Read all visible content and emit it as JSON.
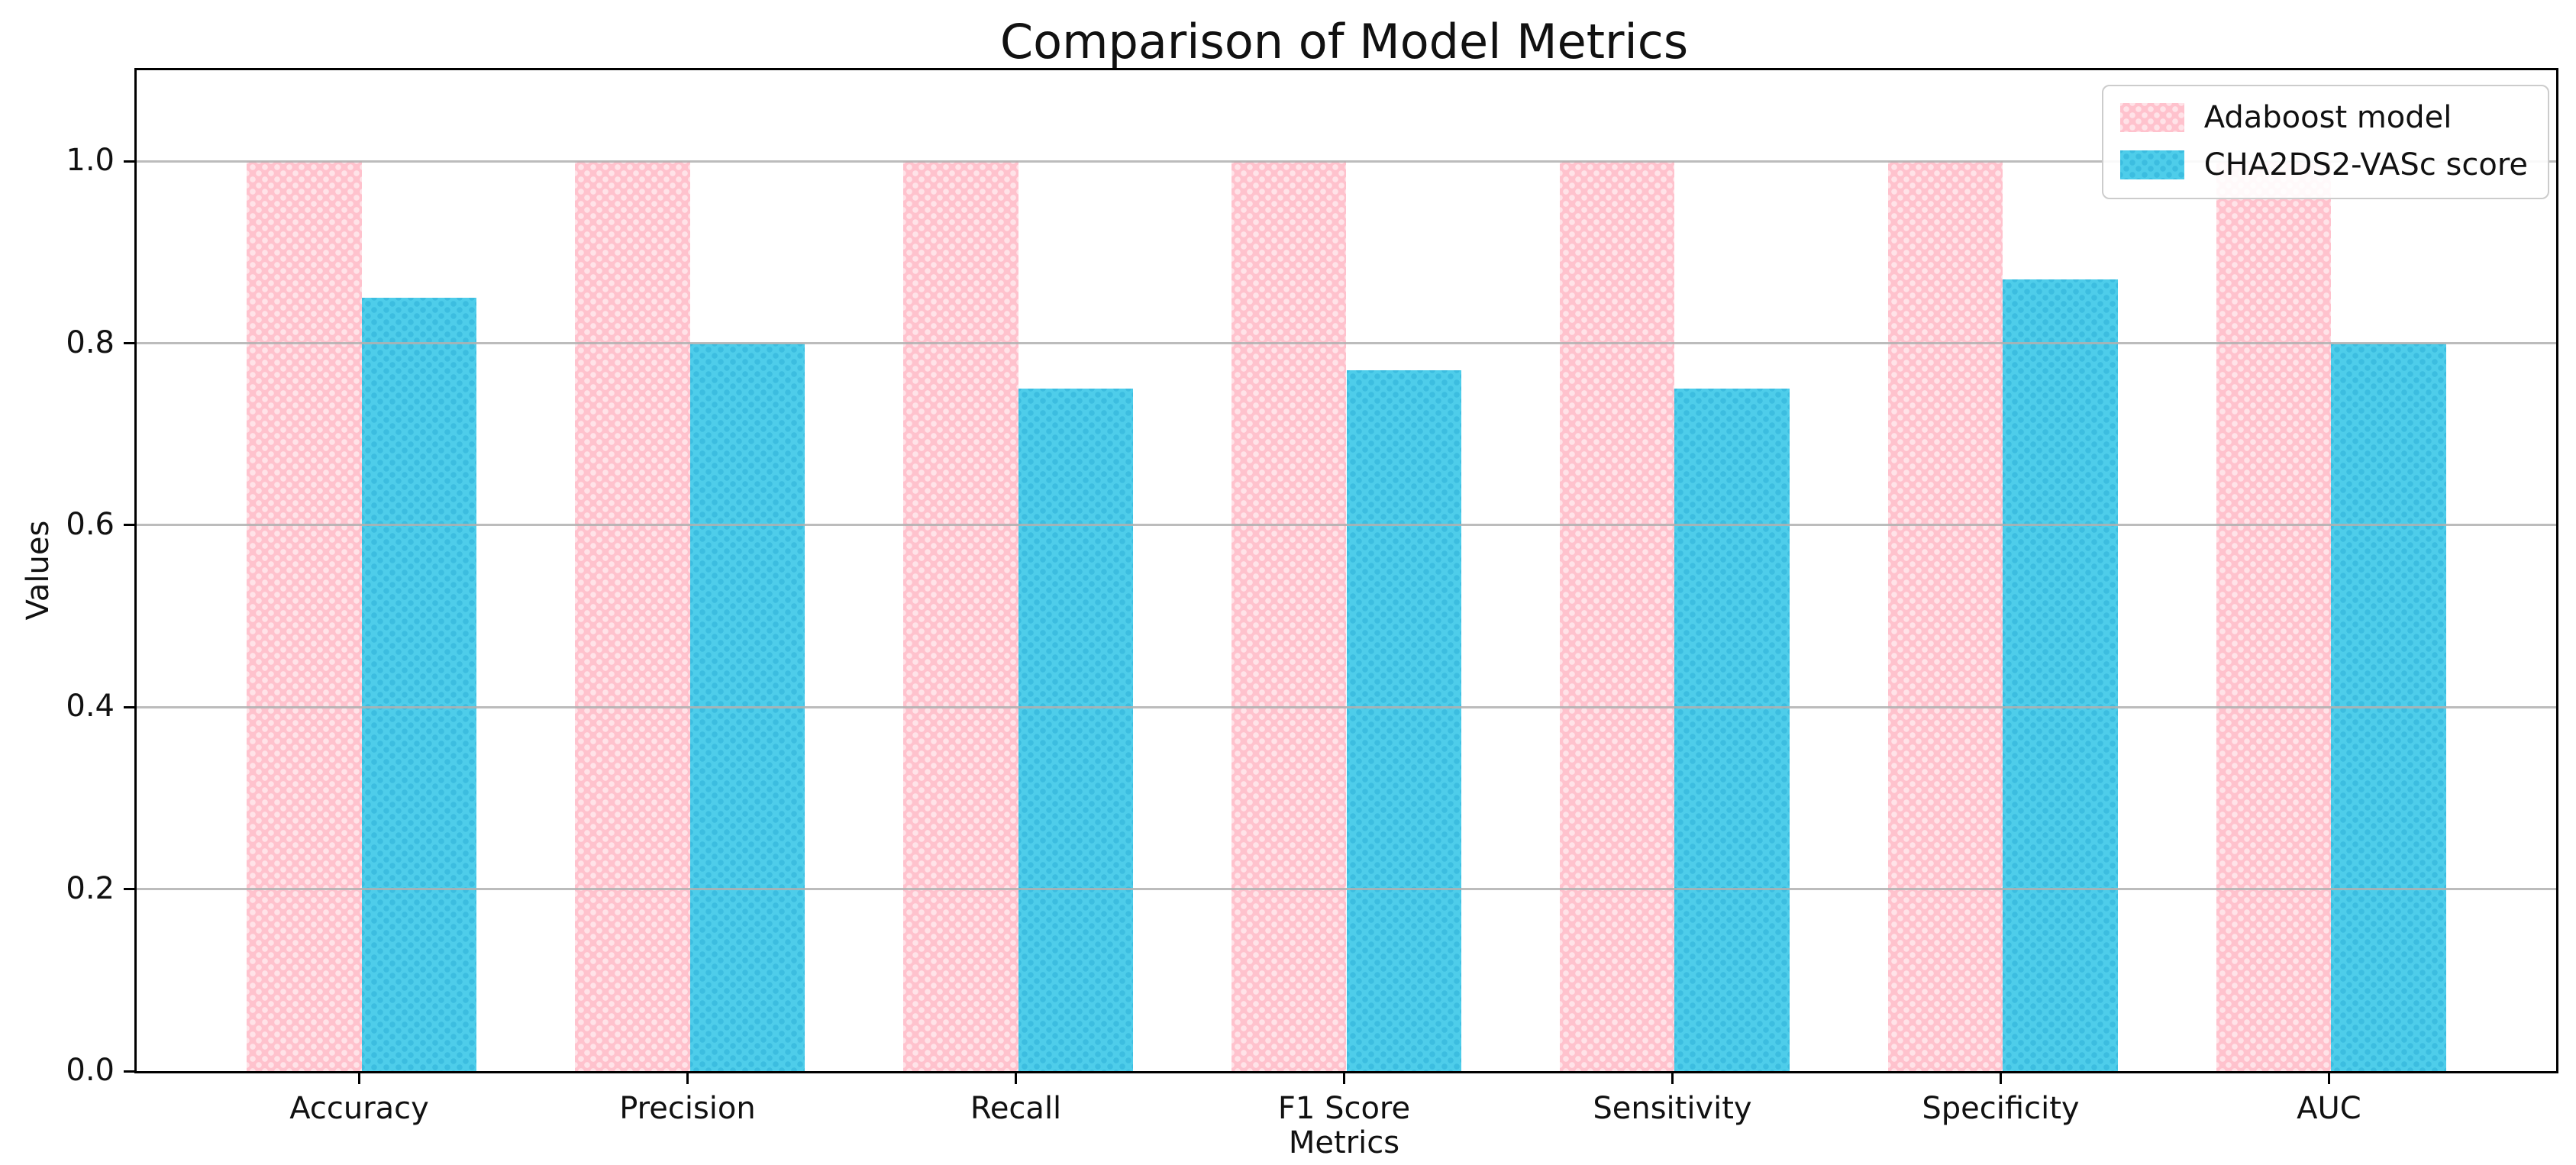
{
  "figure": {
    "title": "Comparison of Model Metrics"
  },
  "chart_data": {
    "type": "bar",
    "title": "Comparison of Model Metrics",
    "xlabel": "Metrics",
    "ylabel": "Values",
    "categories": [
      "Accuracy",
      "Precision",
      "Recall",
      "F1 Score",
      "Sensitivity",
      "Specificity",
      "AUC"
    ],
    "series": [
      {
        "name": "Adaboost model",
        "color": "#ffc2cd",
        "values": [
          1.0,
          1.0,
          1.0,
          1.0,
          1.0,
          1.0,
          1.0
        ]
      },
      {
        "name": "CHA2DS2-VASc score",
        "color": "#4ecdea",
        "values": [
          0.85,
          0.8,
          0.75,
          0.77,
          0.75,
          0.87,
          0.8
        ]
      }
    ],
    "ytick_labels": [
      "0.0",
      "0.2",
      "0.4",
      "0.6",
      "0.8",
      "1.0"
    ],
    "ytick_values": [
      0.0,
      0.2,
      0.4,
      0.6,
      0.8,
      1.0
    ],
    "ylim": [
      0,
      1.1
    ],
    "bar_width": 0.35,
    "grid": true,
    "gridline_color": "#b0b0b0",
    "legend_position": "upper right"
  }
}
